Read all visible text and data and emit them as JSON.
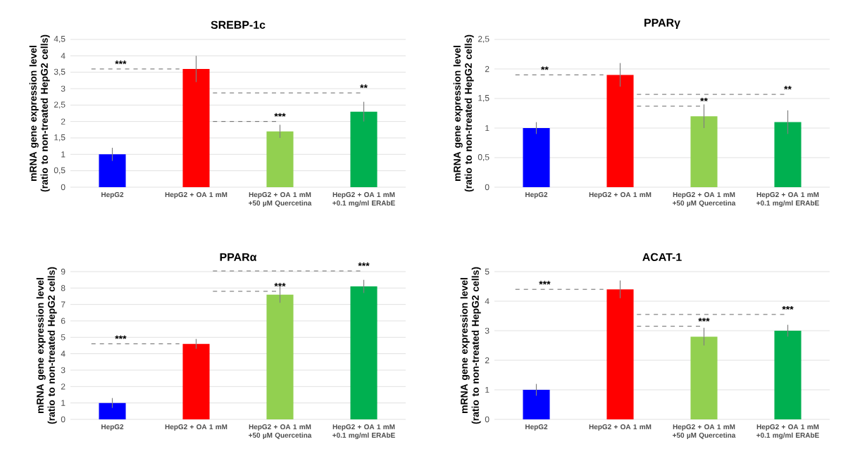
{
  "chart_data": [
    {
      "type": "bar",
      "title": "SREBP-1c",
      "ylabel": "mRNA gene expression level (ratio to non-treated HepG2 cells)",
      "categories": [
        "HepG2",
        "HepG2 + OA 1 mM",
        "HepG2 + OA 1 mM +50 µM Quercetina",
        "HepG2 + OA 1 mM +0.1 mg/ml ERAbE"
      ],
      "values": [
        1.0,
        3.6,
        1.7,
        2.3
      ],
      "errors": [
        0.2,
        0.4,
        0.2,
        0.3
      ],
      "colors": [
        "#0000ff",
        "#ff0000",
        "#92d050",
        "#00b050"
      ],
      "ylim": [
        0,
        4.5
      ],
      "yticks": [
        0,
        {
          "value": 0.5,
          "label": "0,5"
        },
        1,
        {
          "value": 1.5,
          "label": "1,5"
        },
        2,
        {
          "value": 2.5,
          "label": "2,5"
        },
        3,
        {
          "value": 3.5,
          "label": "3,5"
        },
        4,
        {
          "value": 4.5,
          "label": "4,5"
        }
      ],
      "grid": "y",
      "annotations": [
        "***",
        {
          "text": "***",
          "x": "HepG2 + OA 1 mM +50 µM Quercetina",
          "y": 2.0
        },
        "**"
      ]
    },
    {
      "type": "bar",
      "title": "PPARγ",
      "ylabel": "mRNA gene expression level (ratio to non-treated HepG2 cells)",
      "categories": [
        "HepG2",
        "HepG2 + OA 1 mM",
        "HepG2 + OA 1 mM +50 µM Quercetina",
        "HepG2 + OA 1 mM +0.1 mg/ml ERAbE"
      ],
      "values": [
        1.0,
        1.9,
        1.2,
        1.1
      ],
      "errors": [
        0.1,
        0.2,
        0.2,
        0.2
      ],
      "colors": [
        "#0000ff",
        "#ff0000",
        "#92d050",
        "#00b050"
      ],
      "ylim": [
        0,
        2.5
      ],
      "yticks": [
        0,
        {
          "value": 0.5,
          "label": "0,5"
        },
        1,
        {
          "value": 1.5,
          "label": "1,5"
        },
        2,
        {
          "value": 2.5,
          "label": "2,5"
        }
      ],
      "grid": "y",
      "annotations": [
        "**",
        {
          "text": "**",
          "x": "HepG2 + OA 1 mM +50 µM Quercetina",
          "y": 1.37
        },
        "**"
      ]
    },
    {
      "type": "bar",
      "title": "PPARα",
      "ylabel": "mRNA gene expression level (ratio to non-treated HepG2 cells)",
      "categories": [
        "HepG2",
        "HepG2 + OA 1 mM",
        "HepG2 + OA 1 mM +50 µM Quercetina",
        "HepG2 + OA 1 mM +0.1 mg/ml ERAbE"
      ],
      "values": [
        1.0,
        4.6,
        7.6,
        8.1
      ],
      "errors": [
        0.3,
        0.3,
        0.5,
        0.4
      ],
      "colors": [
        "#0000ff",
        "#ff0000",
        "#92d050",
        "#00b050"
      ],
      "ylim": [
        0,
        9
      ],
      "yticks": [
        0,
        1,
        2,
        3,
        4,
        5,
        6,
        7,
        8,
        9
      ],
      "grid": "y",
      "annotations": [
        "***",
        {
          "text": "***",
          "x": "HepG2 + OA 1 mM +50 µM Quercetina",
          "y": 7.8
        },
        "***"
      ]
    },
    {
      "type": "bar",
      "title": "ACAT-1",
      "ylabel": "mRNA gene expression level (ratio to non-treated HepG2 cells)",
      "categories": [
        "HepG2",
        "HepG2 + OA 1 mM",
        "HepG2 + OA 1 mM +50 µM Quercetina",
        "HepG2 + OA 1 mM +0.1 mg/ml ERAbE"
      ],
      "values": [
        1.0,
        4.4,
        2.8,
        3.0
      ],
      "errors": [
        0.2,
        0.3,
        0.3,
        0.2
      ],
      "colors": [
        "#0000ff",
        "#ff0000",
        "#92d050",
        "#00b050"
      ],
      "ylim": [
        0,
        5
      ],
      "yticks": [
        0,
        1,
        2,
        3,
        4,
        5
      ],
      "grid": "y",
      "annotations": [
        "***",
        {
          "text": "***",
          "x": "HepG2 + OA 1 mM +50 µM Quercetina",
          "y": 3.15
        },
        "***"
      ]
    }
  ]
}
